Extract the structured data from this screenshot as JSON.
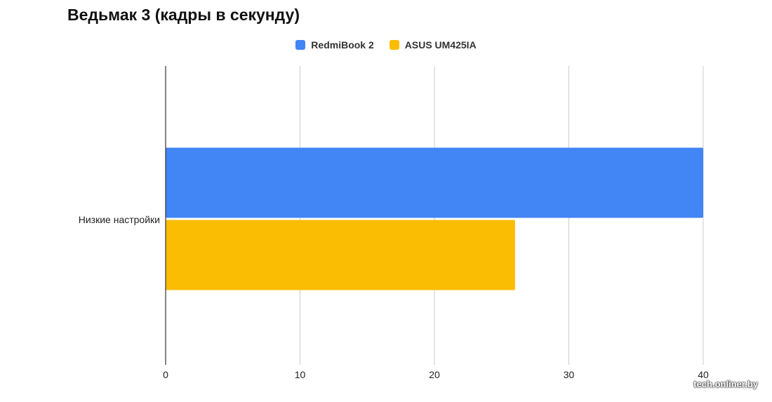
{
  "chart_data": {
    "type": "bar",
    "orientation": "horizontal",
    "title": "Ведьмак 3 (кадры в секунду)",
    "categories": [
      "Низкие настройки"
    ],
    "series": [
      {
        "name": "RedmiBook 2",
        "color": "#4285f4",
        "values": [
          40
        ]
      },
      {
        "name": "ASUS UM425IA",
        "color": "#fbbc04",
        "values": [
          26
        ]
      }
    ],
    "xlim": [
      0,
      40
    ],
    "x_ticks": [
      "0",
      "10",
      "20",
      "30",
      "40"
    ],
    "grid": true,
    "legend_position": "top"
  },
  "watermark": "tech.onliner.by"
}
